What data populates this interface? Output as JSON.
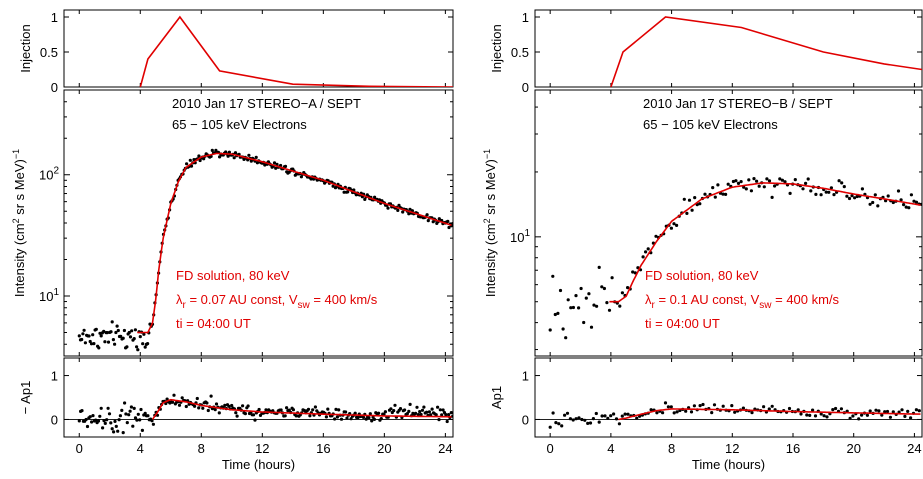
{
  "colors": {
    "model": "#e00000",
    "data": "#000000",
    "frame": "#000000",
    "background": "#ffffff"
  },
  "chart_data": [
    {
      "type": "scatter",
      "panel_group": "STEREO-A",
      "x_range": [
        -1,
        24.5
      ],
      "x_ticks": [
        0,
        4,
        8,
        12,
        16,
        20,
        24
      ],
      "x_label": "Time (hours)",
      "panels": {
        "injection": {
          "ylabel": "Injection",
          "ylim": [
            0,
            1.1
          ],
          "yticks": [
            {
              "v": 0,
              "t": "0"
            },
            {
              "v": 0.5,
              "t": "0.5"
            },
            {
              "v": 1,
              "t": "1"
            }
          ],
          "series": [
            {
              "type": "line",
              "x": [
                4.0,
                4.5,
                6.6,
                9.2,
                14.0,
                19.0,
                24.5
              ],
              "y": [
                0,
                0.4,
                1.0,
                0.23,
                0.04,
                0.01,
                0.0
              ]
            }
          ]
        },
        "intensity": {
          "ylabel": "Intensity (cm² sr s MeV)⁻¹",
          "scale": "log",
          "ylim": [
            3.2,
            500
          ],
          "yticks": [
            {
              "v": 10,
              "t": "10¹"
            },
            {
              "v": 100,
              "t": "10²"
            }
          ],
          "title_lines": [
            "2010 Jan 17  STEREO−A / SEPT",
            "65 − 105 keV Electrons"
          ],
          "model_lines": [
            "FD solution,  80 keV",
            "λr = 0.07 AU  const, Vsw = 400 km/s",
            "ti = 04:00 UT"
          ],
          "model_curve": {
            "x": [
              3.8,
              4.5,
              4.8,
              5.0,
              5.2,
              5.5,
              6.0,
              6.5,
              7.0,
              8.0,
              9.0,
              10.0,
              12.0,
              16.0,
              20.0,
              24.5
            ],
            "y": [
              5.0,
              5.0,
              6.0,
              9.0,
              16.0,
              30.0,
              58.0,
              88.0,
              115.0,
              140.0,
              150.0,
              148.0,
              128.0,
              90.0,
              58.0,
              38.0
            ]
          },
          "data_points": "generated from model + scatter, pre-injection baseline ~4-5"
        },
        "anisotropy": {
          "ylabel": "− Ap1",
          "ylim": [
            -0.4,
            1.4
          ],
          "yticks": [
            {
              "v": 0,
              "t": "0"
            },
            {
              "v": 1,
              "t": "1"
            }
          ],
          "model_curve": {
            "x": [
              4.8,
              5.1,
              5.5,
              6.0,
              7.0,
              8.0,
              10.0,
              12.0,
              16.0,
              20.0,
              24.5
            ],
            "y": [
              0.0,
              0.15,
              0.38,
              0.45,
              0.4,
              0.32,
              0.22,
              0.17,
              0.12,
              0.08,
              0.06
            ]
          }
        }
      }
    },
    {
      "type": "scatter",
      "panel_group": "STEREO-B",
      "x_range": [
        -1,
        24.5
      ],
      "x_ticks": [
        0,
        4,
        8,
        12,
        16,
        20,
        24
      ],
      "x_label": "Time (hours)",
      "panels": {
        "injection": {
          "ylabel": "Injection",
          "ylim": [
            0,
            1.1
          ],
          "yticks": [
            {
              "v": 0,
              "t": "0"
            },
            {
              "v": 0.5,
              "t": "0.5"
            },
            {
              "v": 1,
              "t": "1"
            }
          ],
          "series": [
            {
              "type": "line",
              "x": [
                4.0,
                4.8,
                7.6,
                12.6,
                18.0,
                22.0,
                24.5
              ],
              "y": [
                0,
                0.5,
                1.0,
                0.85,
                0.5,
                0.33,
                0.25
              ]
            }
          ]
        },
        "intensity": {
          "ylabel": "Intensity (cm² sr s MeV)⁻¹",
          "scale": "log",
          "ylim": [
            2.8,
            48
          ],
          "yticks": [
            {
              "v": 10,
              "t": "10¹"
            }
          ],
          "title_lines": [
            "2010 Jan 17  STEREO−B / SEPT",
            "65 − 105 keV Electrons"
          ],
          "model_lines": [
            "FD solution,  80 keV",
            "λr = 0.1 AU  const, Vsw = 400 km/s",
            "ti = 04:00 UT"
          ],
          "model_curve": {
            "x": [
              3.9,
              4.5,
              5.0,
              5.5,
              6.0,
              7.0,
              8.0,
              10.0,
              12.0,
              14.0,
              16.0,
              18.0,
              20.0,
              22.0,
              24.5
            ],
            "y": [
              5.0,
              5.0,
              5.3,
              6.3,
              7.4,
              9.5,
              11.8,
              15.0,
              17.0,
              17.8,
              17.6,
              16.8,
              15.8,
              15.0,
              14.0
            ]
          },
          "data_points": "generated from model + scatter, pre-injection scatter ~3-7"
        },
        "anisotropy": {
          "ylabel": "Ap1",
          "ylim": [
            -0.4,
            1.4
          ],
          "yticks": [
            {
              "v": 0,
              "t": "0"
            },
            {
              "v": 1,
              "t": "1"
            }
          ],
          "model_curve": {
            "x": [
              4.5,
              5.0,
              6.0,
              7.0,
              8.0,
              12.0,
              16.0,
              20.0,
              24.5
            ],
            "y": [
              0.0,
              0.03,
              0.12,
              0.2,
              0.24,
              0.22,
              0.18,
              0.15,
              0.12
            ]
          }
        }
      }
    }
  ]
}
